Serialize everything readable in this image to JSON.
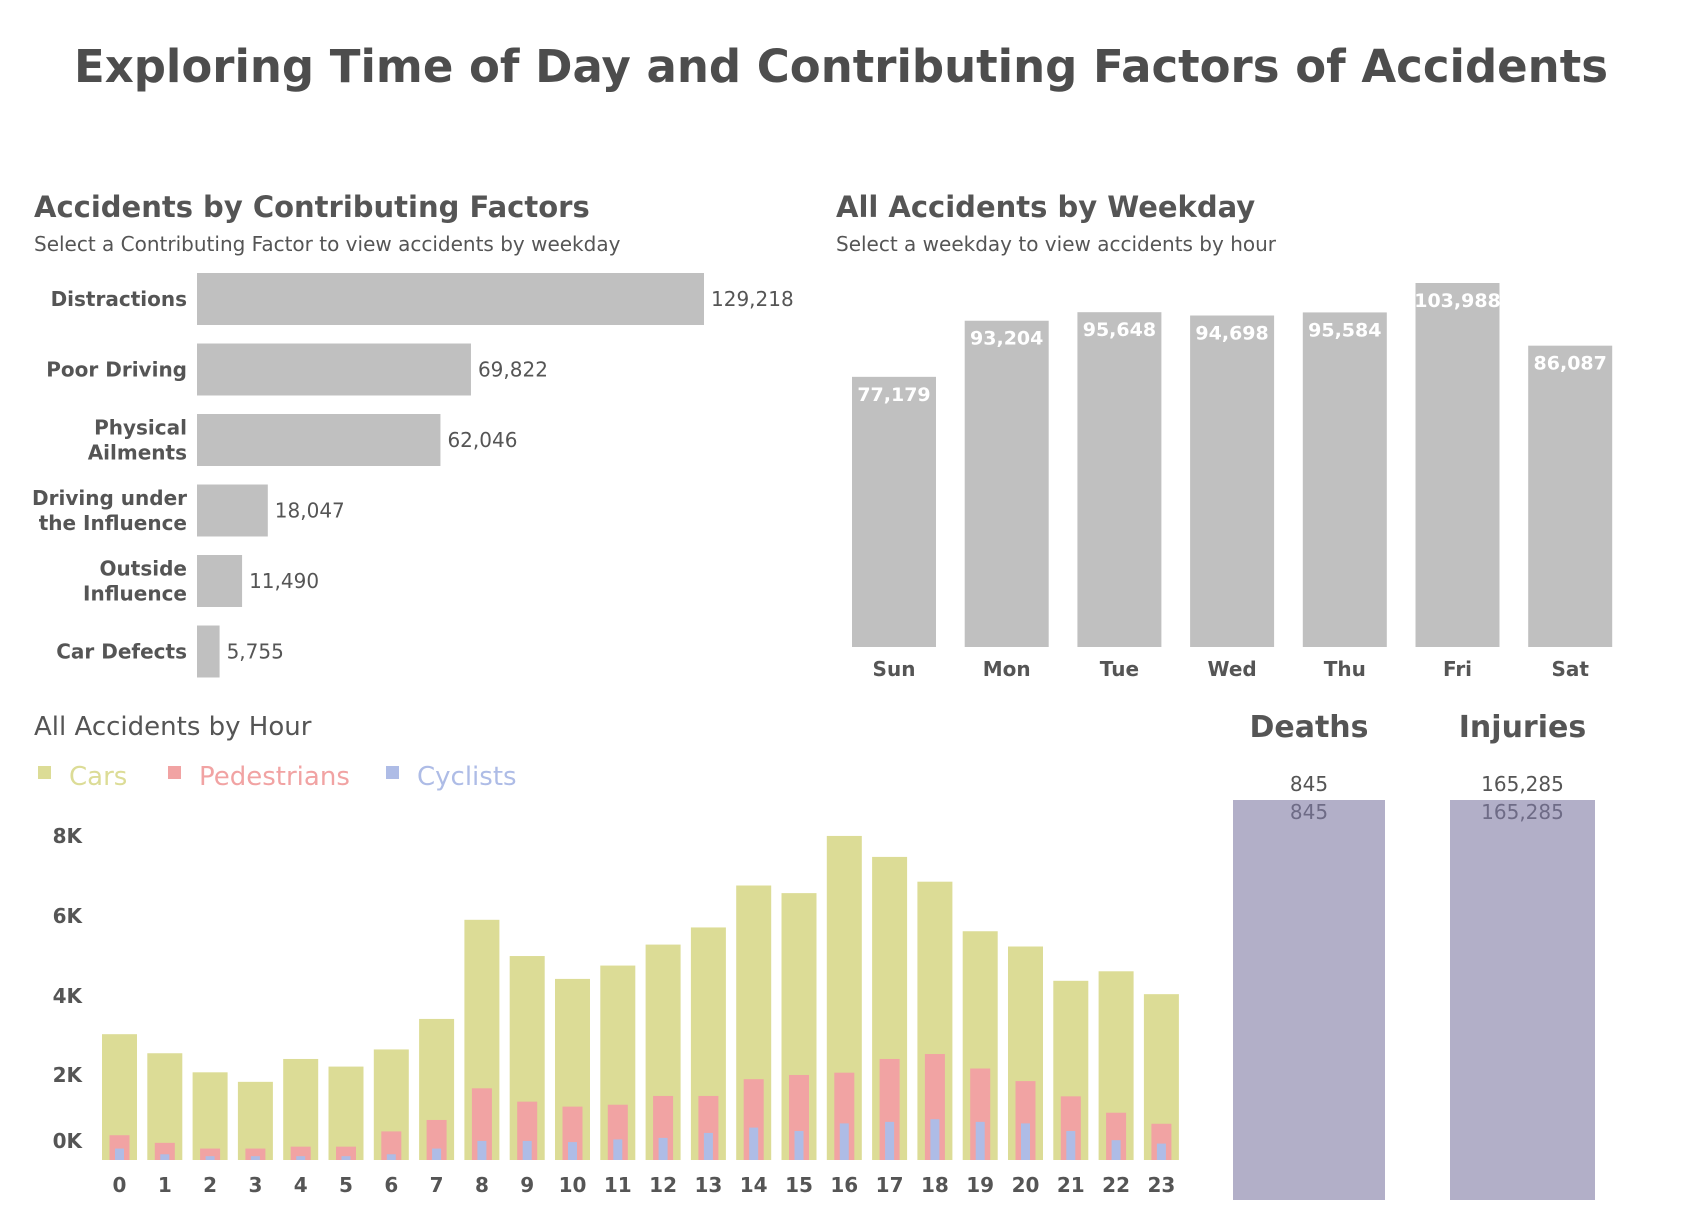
{
  "dashboard": {
    "title": "Exploring Time of Day and Contributing Factors of Accidents"
  },
  "colors": {
    "bar_gray": "#c0c0c0",
    "cars": "#dcdc96",
    "pedestrians": "#f1a3a3",
    "cyclists": "#aebce6",
    "kpi": "#b2afc8",
    "text": "#555555"
  },
  "factors_panel": {
    "title": "Accidents by Contributing Factors",
    "subtitle": "Select a Contributing Factor to view accidents by weekday"
  },
  "weekday_panel": {
    "title": "All Accidents by Weekday",
    "subtitle": "Select a weekday to view accidents by hour"
  },
  "hour_panel": {
    "title": "All  Accidents by Hour"
  },
  "kpis": [
    {
      "label": "Deaths",
      "value": 845,
      "value_text": "845"
    },
    {
      "label": "Injuries",
      "value": 165285,
      "value_text": "165,285"
    }
  ],
  "chart_data": [
    {
      "type": "bar",
      "orientation": "horizontal",
      "title": "Accidents by Contributing Factors",
      "categories": [
        [
          "Distractions"
        ],
        [
          "Poor Driving"
        ],
        [
          "Physical",
          "Ailments"
        ],
        [
          "Driving under",
          "the Influence"
        ],
        [
          "Outside",
          "Influence"
        ],
        [
          "Car Defects"
        ]
      ],
      "values": [
        129218,
        69822,
        62046,
        18047,
        11490,
        5755
      ],
      "value_labels": [
        "129,218",
        "69,822",
        "62,046",
        "18,047",
        "11,490",
        "5,755"
      ]
    },
    {
      "type": "bar",
      "title": "All Accidents by Weekday",
      "categories": [
        "Sun",
        "Mon",
        "Tue",
        "Wed",
        "Thu",
        "Fri",
        "Sat"
      ],
      "values": [
        77179,
        93204,
        95648,
        94698,
        95584,
        103988,
        86087
      ],
      "value_labels": [
        "77,179",
        "93,204",
        "95,648",
        "94,698",
        "95,584",
        "103,988",
        "86,087"
      ]
    },
    {
      "type": "bar",
      "title": "All  Accidents by Hour",
      "x": [
        "0",
        "1",
        "2",
        "3",
        "4",
        "5",
        "6",
        "7",
        "8",
        "9",
        "10",
        "11",
        "12",
        "13",
        "14",
        "15",
        "16",
        "17",
        "18",
        "19",
        "20",
        "21",
        "22",
        "23"
      ],
      "yticks": [
        "0K",
        "2K",
        "4K",
        "6K",
        "8K"
      ],
      "ylim": [
        0,
        8000
      ],
      "series": [
        {
          "name": "Cars",
          "color": "#dcdc96",
          "values": [
            3300,
            2800,
            2300,
            2050,
            2650,
            2450,
            2900,
            3700,
            6300,
            5350,
            4750,
            5100,
            5650,
            6100,
            7200,
            7000,
            8500,
            7950,
            7300,
            6000,
            5600,
            4700,
            4950,
            4350
          ]
        },
        {
          "name": "Pedestrians",
          "color": "#f1a3a3",
          "values": [
            650,
            450,
            300,
            300,
            350,
            350,
            750,
            1050,
            1880,
            1530,
            1400,
            1450,
            1680,
            1680,
            2120,
            2230,
            2290,
            2650,
            2780,
            2400,
            2070,
            1670,
            1240,
            950
          ]
        },
        {
          "name": "Cyclists",
          "color": "#aebce6",
          "values": [
            300,
            150,
            100,
            100,
            100,
            100,
            150,
            300,
            500,
            500,
            470,
            540,
            580,
            710,
            850,
            760,
            960,
            1000,
            1070,
            1000,
            960,
            760,
            520,
            430
          ]
        }
      ]
    }
  ]
}
